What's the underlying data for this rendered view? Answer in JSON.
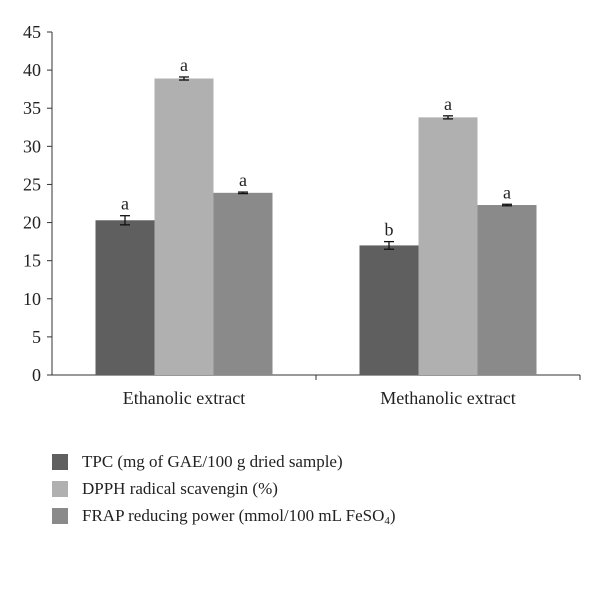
{
  "chart_data": {
    "type": "bar",
    "categories": [
      "Ethanolic extract",
      "Methanolic extract"
    ],
    "ylim": [
      0,
      45
    ],
    "yticks": [
      0,
      5,
      10,
      15,
      20,
      25,
      30,
      35,
      40,
      45
    ],
    "grid": false,
    "legend_position": "bottom",
    "series": [
      {
        "name": "TPC (mg of GAE/100 g dried sample)",
        "color": "#5f5f5f",
        "values": [
          20.3,
          17.0
        ],
        "errors": [
          0.6,
          0.5
        ],
        "letters": [
          "a",
          "b"
        ]
      },
      {
        "name": "DPPH radical scavengin (%)",
        "color": "#b0b0b0",
        "values": [
          38.9,
          33.8
        ],
        "errors": [
          0.2,
          0.2
        ],
        "letters": [
          "a",
          "a"
        ]
      },
      {
        "name": "FRAP reducing power (mmol/100 mL FeSO",
        "name_subscript": "4",
        "name_suffix": ")",
        "color": "#8a8a8a",
        "values": [
          23.9,
          22.3
        ],
        "errors": [
          0.1,
          0.1
        ],
        "letters": [
          "a",
          "a"
        ]
      }
    ]
  }
}
